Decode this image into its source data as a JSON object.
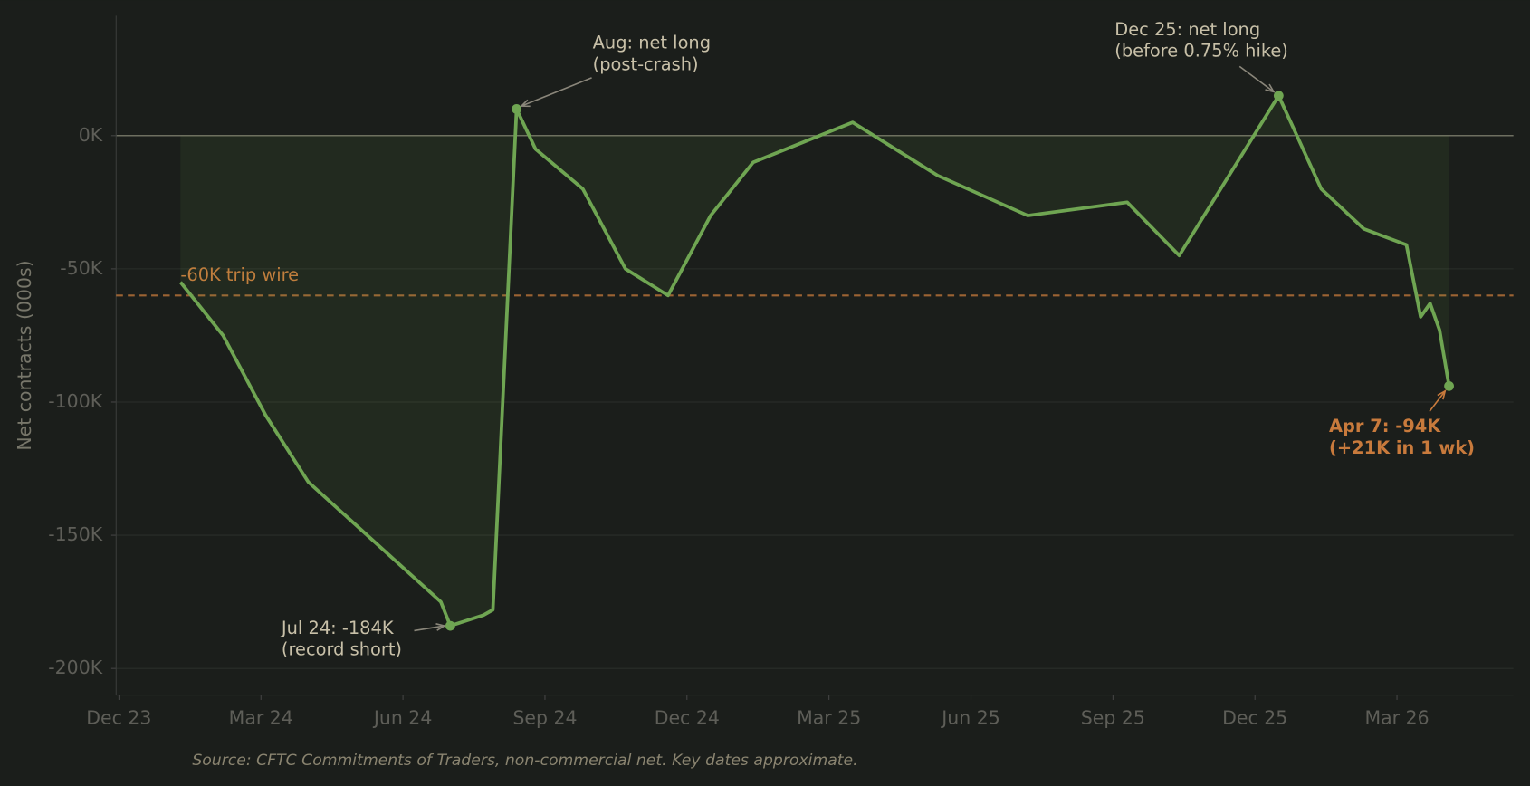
{
  "chart_data": {
    "type": "line",
    "y_label": "Net contracts (000s)",
    "source": "Source: CFTC Commitments of Traders, non-commercial net. Key dates approximate.",
    "x": [
      1.3,
      2.2,
      3.1,
      4.0,
      6.8,
      7.0,
      7.7,
      7.9,
      8.4,
      8.8,
      9.8,
      10.7,
      11.6,
      12.5,
      13.4,
      15.5,
      17.3,
      19.2,
      21.3,
      22.4,
      24.5,
      25.4,
      26.3,
      27.2,
      27.5,
      27.7,
      27.9,
      28.1
    ],
    "series": [
      {
        "name": "Net contracts",
        "color": "#6fa552",
        "values": [
          -55,
          -75,
          -105,
          -130,
          -175,
          -184,
          -180,
          -178,
          10,
          -5,
          -20,
          -50,
          -60,
          -30,
          -10,
          5,
          -15,
          -30,
          -25,
          -45,
          15,
          -20,
          -35,
          -41,
          -68,
          -63,
          -73,
          -94
        ]
      }
    ],
    "xlim": [
      -0.06,
      29.46
    ],
    "xticks": [
      {
        "value": 0,
        "label": "Dec 23"
      },
      {
        "value": 3,
        "label": "Mar 24"
      },
      {
        "value": 6,
        "label": "Jun 24"
      },
      {
        "value": 9,
        "label": "Sep 24"
      },
      {
        "value": 12,
        "label": "Dec 24"
      },
      {
        "value": 15,
        "label": "Mar 25"
      },
      {
        "value": 18,
        "label": "Jun 25"
      },
      {
        "value": 21,
        "label": "Sep 25"
      },
      {
        "value": 24,
        "label": "Dec 25"
      },
      {
        "value": 27,
        "label": "Mar 26"
      }
    ],
    "ylim": [
      -210,
      45
    ],
    "yticks": [
      {
        "value": 0,
        "label": "0K"
      },
      {
        "value": -50,
        "label": "-50K"
      },
      {
        "value": -100,
        "label": "-100K"
      },
      {
        "value": -150,
        "label": "-150K"
      },
      {
        "value": -200,
        "label": "-200K"
      }
    ],
    "grid": true,
    "threshold": {
      "value": -60,
      "label": "-60K trip wire",
      "color": "#c87a3c"
    },
    "annotations": [
      {
        "text": [
          "Jul 24: -184K",
          "(record short)"
        ],
        "x": 7.0,
        "y": -184,
        "color": "#c8c0a8"
      },
      {
        "text": [
          "Aug: net long",
          "(post-crash)"
        ],
        "x": 8.4,
        "y": 10,
        "color": "#c8c0a8"
      },
      {
        "text": [
          "Dec 25: net long",
          "(before 0.75% hike)"
        ],
        "x": 24.5,
        "y": 15,
        "color": "#c8c0a8"
      },
      {
        "text": [
          "Apr 7: -94K",
          "(+21K in 1 wk)"
        ],
        "x": 28.1,
        "y": -94,
        "color": "#c87a3c",
        "bold": true
      }
    ]
  }
}
